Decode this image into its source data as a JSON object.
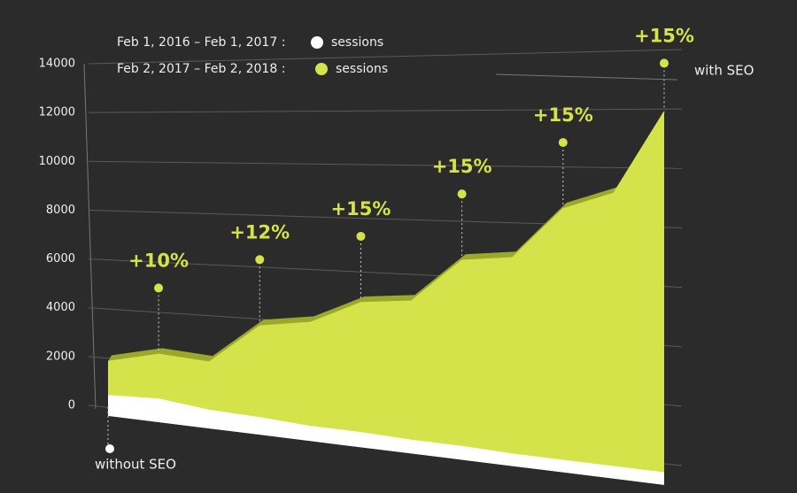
{
  "chart_data": {
    "type": "area",
    "categories": [
      null,
      null,
      null,
      null,
      null,
      null,
      null,
      null,
      null,
      null,
      null,
      null
    ],
    "series": [
      {
        "period": "Feb 1, 2016  – Feb 1, 2017 :",
        "name": "sessions",
        "color": "#ffffff",
        "values": [
          400,
          500,
          300,
          250,
          150,
          150,
          100,
          100,
          50,
          50,
          50,
          50
        ]
      },
      {
        "period": "Feb 2, 2017 – Feb 2, 2018 :",
        "name": "sessions",
        "color": "#d4e34a",
        "values": [
          1800,
          2300,
          2200,
          3800,
          4100,
          5000,
          5200,
          6800,
          7000,
          8800,
          9400,
          12200
        ]
      }
    ],
    "ylim": [
      0,
      14000
    ],
    "yticks": [
      0,
      2000,
      4000,
      6000,
      8000,
      10000,
      12000,
      14000
    ],
    "grid": true,
    "annotations": [
      "+10%",
      "+12%",
      "+15%",
      "+15%",
      "+15%",
      "+15%"
    ],
    "start_label": "without SEO",
    "end_label": "with SEO"
  }
}
